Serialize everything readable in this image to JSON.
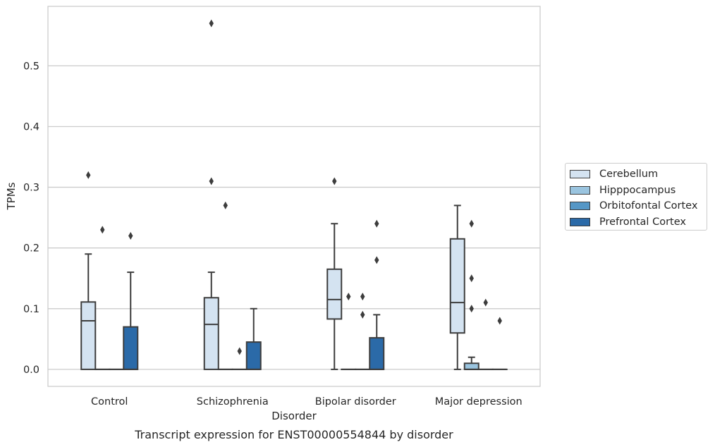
{
  "chart_data": {
    "type": "box",
    "title": "Transcript expression for ENST00000554844 by disorder",
    "xlabel": "Disorder",
    "ylabel": "TPMs",
    "ylim": [
      -0.028,
      0.598
    ],
    "yticks": [
      "0.0",
      "0.1",
      "0.2",
      "0.3",
      "0.4",
      "0.5"
    ],
    "grid": "horizontal",
    "legend_position": "right",
    "categories": [
      "Control",
      "Schizophrenia",
      "Bipolar disorder",
      "Major depression"
    ],
    "series": [
      {
        "name": "Cerebellum",
        "color": "#d4e3f1",
        "boxes": [
          {
            "category": "Control",
            "whislo": 0.0,
            "q1": 0.0,
            "med": 0.08,
            "q3": 0.111,
            "whishi": 0.19,
            "fliers": [
              0.32
            ]
          },
          {
            "category": "Schizophrenia",
            "whislo": 0.0,
            "q1": 0.0,
            "med": 0.074,
            "q3": 0.118,
            "whishi": 0.16,
            "fliers": [
              0.31,
              0.57
            ]
          },
          {
            "category": "Bipolar disorder",
            "whislo": 0.0,
            "q1": 0.083,
            "med": 0.115,
            "q3": 0.165,
            "whishi": 0.24,
            "fliers": [
              0.31
            ]
          },
          {
            "category": "Major depression",
            "whislo": 0.0,
            "q1": 0.06,
            "med": 0.11,
            "q3": 0.215,
            "whishi": 0.27,
            "fliers": []
          }
        ]
      },
      {
        "name": "Hipppocampus",
        "color": "#9ac4df",
        "boxes": [
          {
            "category": "Control",
            "whislo": 0.0,
            "q1": 0.0,
            "med": 0.0,
            "q3": 0.0,
            "whishi": 0.0,
            "fliers": [
              0.23
            ]
          },
          {
            "category": "Schizophrenia",
            "whislo": 0.0,
            "q1": 0.0,
            "med": 0.0,
            "q3": 0.0,
            "whishi": 0.0,
            "fliers": [
              0.27
            ]
          },
          {
            "category": "Bipolar disorder",
            "whislo": 0.0,
            "q1": 0.0,
            "med": 0.0,
            "q3": 0.0,
            "whishi": 0.0,
            "fliers": [
              0.12
            ]
          },
          {
            "category": "Major depression",
            "whislo": 0.0,
            "q1": 0.0,
            "med": 0.0,
            "q3": 0.01,
            "whishi": 0.02,
            "fliers": [
              0.1,
              0.15,
              0.24
            ]
          }
        ]
      },
      {
        "name": "Orbitofontal Cortex",
        "color": "#5597c6",
        "boxes": [
          {
            "category": "Control",
            "whislo": 0.0,
            "q1": 0.0,
            "med": 0.0,
            "q3": 0.0,
            "whishi": 0.0,
            "fliers": []
          },
          {
            "category": "Schizophrenia",
            "whislo": 0.0,
            "q1": 0.0,
            "med": 0.0,
            "q3": 0.0,
            "whishi": 0.0,
            "fliers": [
              0.03
            ]
          },
          {
            "category": "Bipolar disorder",
            "whislo": 0.0,
            "q1": 0.0,
            "med": 0.0,
            "q3": 0.0,
            "whishi": 0.0,
            "fliers": [
              0.09,
              0.12
            ]
          },
          {
            "category": "Major depression",
            "whislo": 0.0,
            "q1": 0.0,
            "med": 0.0,
            "q3": 0.0,
            "whishi": 0.0,
            "fliers": [
              0.11
            ]
          }
        ]
      },
      {
        "name": "Prefrontal Cortex",
        "color": "#2b6aa8",
        "boxes": [
          {
            "category": "Control",
            "whislo": 0.0,
            "q1": 0.0,
            "med": 0.0,
            "q3": 0.07,
            "whishi": 0.16,
            "fliers": [
              0.22
            ]
          },
          {
            "category": "Schizophrenia",
            "whislo": 0.0,
            "q1": 0.0,
            "med": 0.0,
            "q3": 0.045,
            "whishi": 0.1,
            "fliers": []
          },
          {
            "category": "Bipolar disorder",
            "whislo": 0.0,
            "q1": 0.0,
            "med": 0.0,
            "q3": 0.052,
            "whishi": 0.09,
            "fliers": [
              0.18,
              0.24
            ]
          },
          {
            "category": "Major depression",
            "whislo": 0.0,
            "q1": 0.0,
            "med": 0.0,
            "q3": 0.0,
            "whishi": 0.0,
            "fliers": [
              0.08
            ]
          }
        ]
      }
    ]
  }
}
